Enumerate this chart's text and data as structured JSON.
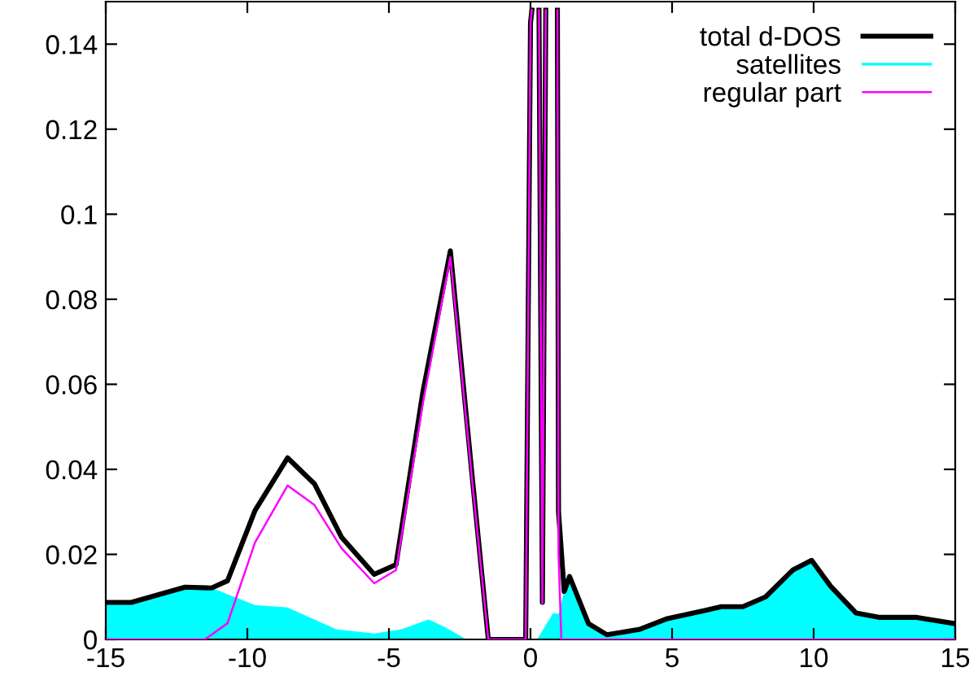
{
  "chart_data": {
    "type": "line",
    "xlim": [
      -15,
      15
    ],
    "ylim": [
      0,
      0.15
    ],
    "xticks": [
      -15,
      -10,
      -5,
      0,
      5,
      10,
      15
    ],
    "yticks": [
      0,
      0.02,
      0.04,
      0.06,
      0.08,
      0.1,
      0.12,
      0.14
    ],
    "grid": false,
    "legend": "top right",
    "marker": "none",
    "line_style": "solid",
    "series": [
      {
        "name": "total d-DOS",
        "color": "#000000",
        "x": [
          -15,
          -14.1,
          -12.2,
          -11.26,
          -10.7,
          -9.73,
          -8.58,
          -7.63,
          -6.67,
          -5.52,
          -4.75,
          -3.8,
          -2.83,
          -2.07,
          -1.49,
          -0.17,
          0.0,
          0.05,
          null,
          0.3,
          0.42,
          0.54,
          null,
          0.95,
          0.99,
          1.19,
          1.38,
          2.05,
          2.7,
          3.87,
          4.83,
          6.15,
          6.74,
          7.5,
          8.3,
          9.26,
          9.93,
          10.6,
          11.5,
          12.3,
          13.6,
          15
        ],
        "values": [
          0.0087,
          0.0087,
          0.0123,
          0.0121,
          0.0138,
          0.0303,
          0.0427,
          0.0366,
          0.024,
          0.0153,
          0.0176,
          0.0582,
          0.0914,
          0.039,
          0,
          0,
          0.145,
          0.148,
          null,
          0.148,
          0.0087,
          0.148,
          null,
          0.148,
          0.03,
          0.0113,
          0.0148,
          0.0037,
          0.0011,
          0.0024,
          0.0049,
          0.0068,
          0.0077,
          0.0077,
          0.01,
          0.0163,
          0.0186,
          0.0125,
          0.0062,
          0.0052,
          0.0052,
          0.0037
        ]
      },
      {
        "name": "satellites",
        "type": "area",
        "color": "#00ffff",
        "x": [
          -15,
          -14.1,
          -12.2,
          -11.26,
          -9.73,
          -8.58,
          -6.86,
          -5.52,
          -4.56,
          -3.6,
          -3.03,
          -2.26,
          0,
          0.23,
          0.8,
          0.99,
          1.19,
          1.38,
          2.05,
          2.7,
          3.87,
          4.83,
          6.15,
          6.74,
          7.5,
          8.3,
          9.26,
          9.93,
          10.6,
          11.5,
          12.3,
          13.6,
          15
        ],
        "values": [
          0.0087,
          0.0087,
          0.0123,
          0.0121,
          0.0081,
          0.0075,
          0.0024,
          0.0014,
          0.0024,
          0.0047,
          0.0029,
          0,
          0,
          0,
          0.0062,
          0.006,
          0.0113,
          0.0148,
          0.0037,
          0.0011,
          0.0024,
          0.0049,
          0.0068,
          0.0077,
          0.0077,
          0.01,
          0.0163,
          0.0186,
          0.0125,
          0.0062,
          0.0052,
          0.0052,
          0.0037
        ]
      },
      {
        "name": "regular part",
        "color": "#ff00ff",
        "x": [
          -15,
          -11.5,
          -10.7,
          -9.73,
          -8.58,
          -7.63,
          -6.67,
          -5.52,
          -4.75,
          -3.8,
          -2.83,
          -2.07,
          -1.49,
          -0.17,
          0.0,
          0.05,
          null,
          0.3,
          0.42,
          0.54,
          null,
          0.95,
          0.99,
          1.09,
          15
        ],
        "values": [
          0,
          0,
          0.0038,
          0.0228,
          0.0362,
          0.0316,
          0.0214,
          0.0132,
          0.0163,
          0.0556,
          0.0899,
          0.038,
          0,
          0,
          0.145,
          0.148,
          null,
          0.148,
          0.0085,
          0.148,
          null,
          0.148,
          0.02,
          0,
          0
        ]
      }
    ]
  }
}
